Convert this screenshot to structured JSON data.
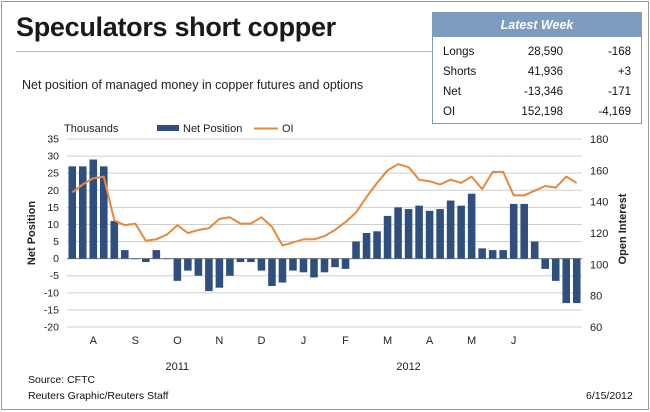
{
  "title": "Speculators short copper",
  "subtitle": "Net position of managed money in copper futures and options",
  "latest_week": {
    "header": "Latest Week",
    "rows": [
      {
        "label": "Longs",
        "value": "28,590",
        "change": "-168"
      },
      {
        "label": "Shorts",
        "value": "41,936",
        "change": "+3"
      },
      {
        "label": "Net",
        "value": "-13,346",
        "change": "-171"
      },
      {
        "label": "OI",
        "value": "152,198",
        "change": "-4,169"
      }
    ]
  },
  "footer": {
    "source": "Source: CFTC",
    "credit": "Reuters Graphic/Reuters Staff",
    "date": "6/15/2012"
  },
  "colors": {
    "bar": "#2f4f7f",
    "line": "#e8883a",
    "header_bg": "#7d9cc0"
  },
  "chart_data": {
    "type": "bar+line",
    "units_label": "Thousands",
    "ylabel_left": "Net Position",
    "ylabel_right": "Open Interest",
    "left_axis": {
      "min": -20,
      "max": 35,
      "ticks": [
        -20,
        -15,
        -10,
        -5,
        0,
        5,
        10,
        15,
        20,
        25,
        30,
        35
      ]
    },
    "right_axis": {
      "min": 60,
      "max": 180,
      "ticks": [
        60,
        80,
        100,
        120,
        140,
        160,
        180
      ]
    },
    "legend": [
      "Net Position",
      "OI"
    ],
    "legend_position": "top",
    "month_labels": [
      {
        "label": "A",
        "index": 2.5
      },
      {
        "label": "S",
        "index": 6.5
      },
      {
        "label": "O",
        "index": 10.5
      },
      {
        "label": "N",
        "index": 14.5
      },
      {
        "label": "D",
        "index": 18.5
      },
      {
        "label": "J",
        "index": 22.5
      },
      {
        "label": "F",
        "index": 26.5
      },
      {
        "label": "M",
        "index": 30.5
      },
      {
        "label": "A",
        "index": 34.5
      },
      {
        "label": "M",
        "index": 38.5
      },
      {
        "label": "J",
        "index": 42.5
      }
    ],
    "year_labels": [
      {
        "label": "2011",
        "index": 10.5
      },
      {
        "label": "2012",
        "index": 32.5
      }
    ],
    "series": [
      {
        "name": "Net Position",
        "type": "bar",
        "axis": "left",
        "values": [
          27,
          27,
          29,
          27,
          11,
          2.5,
          0,
          -1,
          2.5,
          0,
          -6.5,
          -3.5,
          -5,
          -9.5,
          -8.5,
          -5,
          -1,
          -1,
          -3.5,
          -8,
          -7,
          -3.5,
          -4,
          -5.5,
          -4,
          -2.5,
          -3,
          5,
          7.5,
          8,
          12.5,
          15,
          14.5,
          15.5,
          14,
          14.5,
          17,
          15.5,
          19,
          3,
          2.5,
          2.5,
          16,
          16,
          5,
          -3,
          -6.5,
          -13,
          -13
        ]
      },
      {
        "name": "OI",
        "type": "line",
        "axis": "right",
        "values": [
          146,
          151,
          155,
          156,
          128,
          125,
          126,
          115,
          116,
          119,
          125,
          120,
          122,
          123,
          129,
          130,
          126,
          126,
          130,
          124,
          112,
          114,
          116,
          116,
          118,
          122,
          127,
          133,
          143,
          152,
          160,
          164,
          162,
          154,
          153,
          151,
          154,
          152,
          156,
          148,
          159,
          159,
          144,
          144,
          147,
          150,
          149,
          156,
          152
        ]
      }
    ]
  }
}
